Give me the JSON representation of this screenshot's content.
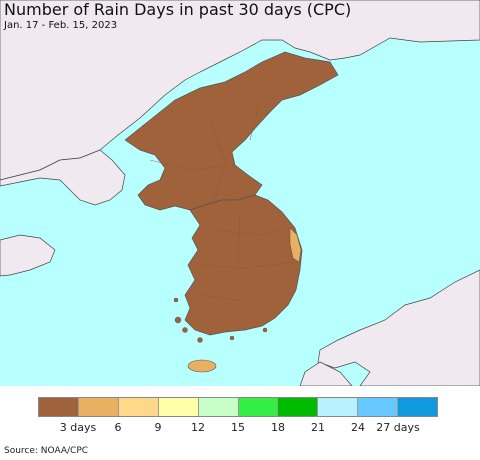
{
  "header": {
    "title": "Number of Rain Days in past 30 days (CPC)",
    "date_range": "Jan. 17 - Feb. 15, 2023"
  },
  "map": {
    "ocean_color": "#b8ffff",
    "land_outside_color": "#f0eaf0",
    "primary_category_color": "#a0623a",
    "secondary_category_color": "#e8b060"
  },
  "legend": {
    "colors": [
      "#a0623a",
      "#e8b060",
      "#ffd88a",
      "#ffffaa",
      "#c8ffc8",
      "#33ee44",
      "#00bb00",
      "#b8f0ff",
      "#66c8ff",
      "#1199dd"
    ],
    "labels": [
      "3 days",
      "6",
      "9",
      "12",
      "15",
      "18",
      "21",
      "24",
      "27 days"
    ]
  },
  "footer": {
    "source": "Source: NOAA/CPC"
  }
}
